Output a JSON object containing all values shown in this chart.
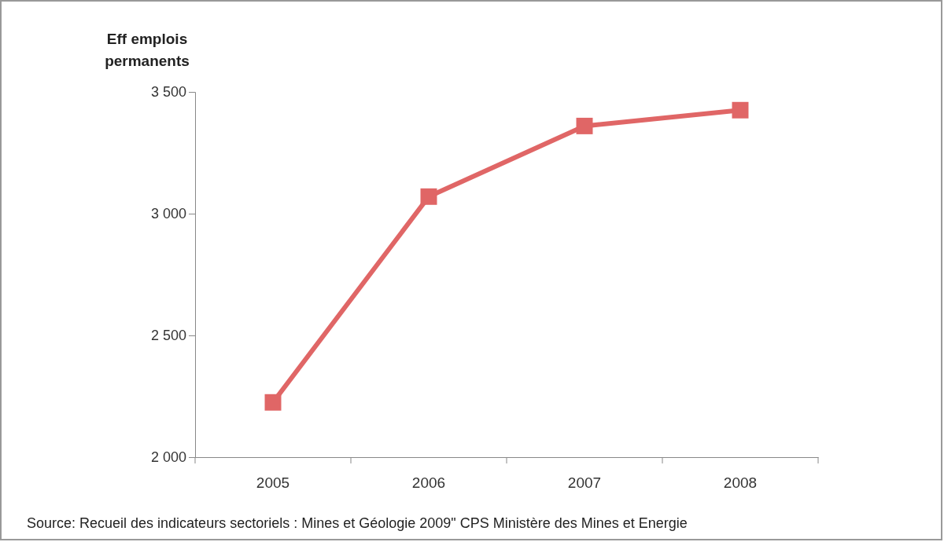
{
  "chart_data": {
    "type": "line",
    "ylabel": "Eff emplois permanents",
    "categories": [
      "2005",
      "2006",
      "2007",
      "2008"
    ],
    "series": [
      {
        "color": "#e06666",
        "values": [
          2225,
          3070,
          3360,
          3425
        ]
      }
    ],
    "ylim": [
      2000,
      3500
    ],
    "yticks": [
      {
        "value": 2000,
        "label": "2 000"
      },
      {
        "value": 2500,
        "label": "2 500"
      },
      {
        "value": 3000,
        "label": "3 000"
      },
      {
        "value": 3500,
        "label": "3 500"
      }
    ],
    "marker": "square",
    "line_style": "solid",
    "grid": false,
    "annotations": [
      "Source: Recueil des indicateurs sectoriels : Mines et Géologie 2009\" CPS Ministère des Mines  et Energie"
    ]
  }
}
